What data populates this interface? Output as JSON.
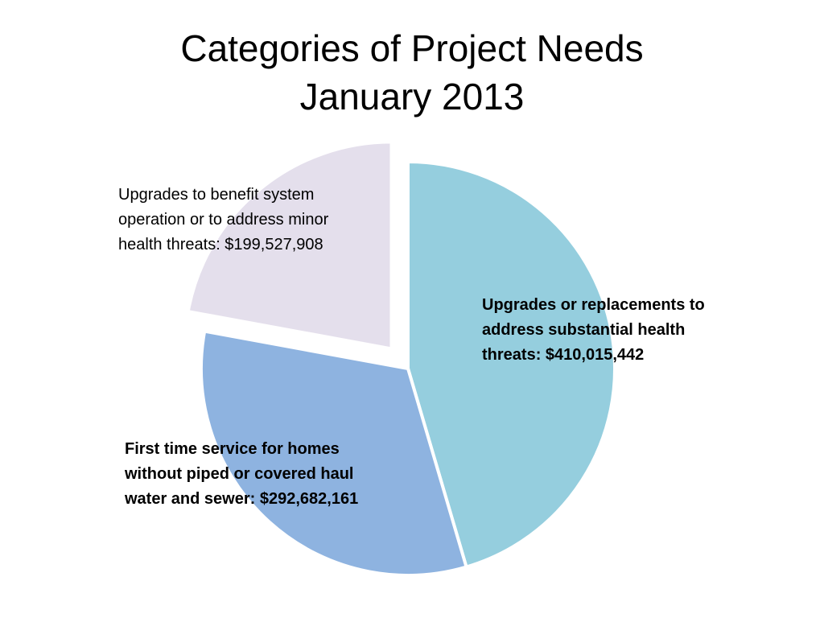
{
  "slide": {
    "title_line1": "Categories of Project Needs",
    "title_line2": "January 2013"
  },
  "chart_data": {
    "type": "pie",
    "title": "Categories of Project Needs January 2013",
    "slices": [
      {
        "label_lines": [
          "Upgrades or replacements to",
          "address substantial health",
          "threats: $410,015,442"
        ],
        "value": 410015442,
        "color": "#95CEDE",
        "exploded": false,
        "bold": true
      },
      {
        "label_lines": [
          "First time service for homes",
          "without piped or covered haul",
          "water and sewer:  $292,682,161"
        ],
        "value": 292682161,
        "color": "#8EB3E0",
        "exploded": false,
        "bold": true
      },
      {
        "label_lines": [
          "Upgrades to benefit system",
          "operation or to address minor",
          "health threats:  $199,527,908"
        ],
        "value": 199527908,
        "color": "#E4DFEC",
        "exploded": true,
        "bold": false
      }
    ]
  }
}
